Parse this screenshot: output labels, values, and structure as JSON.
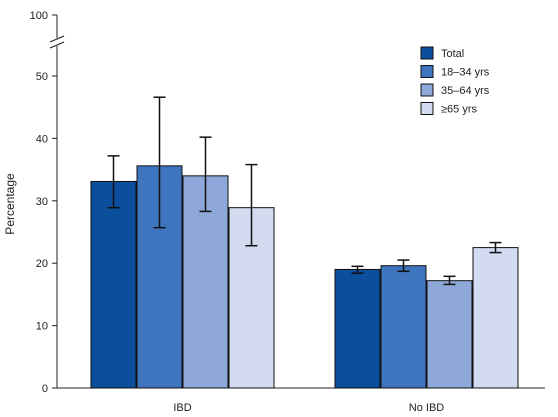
{
  "chart_data": {
    "type": "bar",
    "ylabel": "Percentage",
    "xlabel": "",
    "categories": [
      "IBD",
      "No IBD"
    ],
    "series": [
      {
        "name": "Total",
        "color": "#0b4f9c",
        "values": [
          33.1,
          19.0
        ],
        "ci_low": [
          28.9,
          18.4
        ],
        "ci_high": [
          37.2,
          19.5
        ]
      },
      {
        "name": "18–34 yrs",
        "color": "#3f74be",
        "values": [
          35.6,
          19.6
        ],
        "ci_low": [
          25.7,
          18.7
        ],
        "ci_high": [
          46.6,
          20.5
        ]
      },
      {
        "name": "35–64 yrs",
        "color": "#8fa8da",
        "values": [
          34.0,
          17.2
        ],
        "ci_low": [
          28.3,
          16.6
        ],
        "ci_high": [
          40.2,
          17.9
        ]
      },
      {
        "name": "≥65 yrs",
        "color": "#d3dbf1",
        "values": [
          28.9,
          22.5
        ],
        "ci_low": [
          22.8,
          21.7
        ],
        "ci_high": [
          35.8,
          23.3
        ]
      }
    ],
    "y_ticks": [
      0,
      10,
      20,
      30,
      40,
      50
    ],
    "y_break_tick": 100,
    "ylim": [
      0,
      50
    ],
    "axis_break": true,
    "error_bars": true,
    "legend_position": "top-right",
    "grid": false
  }
}
